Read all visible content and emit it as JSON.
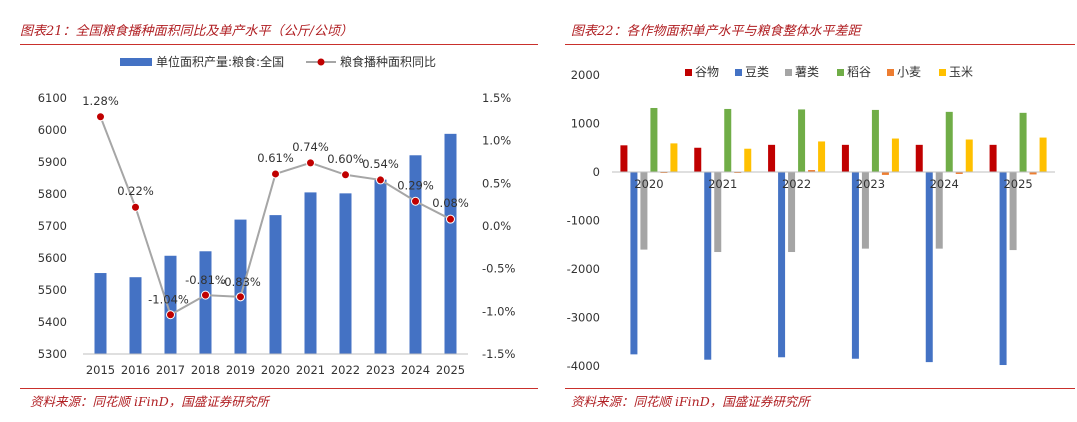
{
  "colors": {
    "title": "#b01e22",
    "rule": "#c9302c",
    "bar_blue": "#4472c4",
    "line_gray": "#a6a6a6",
    "marker_red": "#c00000"
  },
  "left": {
    "title": "图表21：全国粮食播种面积同比及单产水平（公斤/公顷）",
    "source": "资料来源：同花顺 iFinD，国盛证券研究所",
    "chart_data": {
      "type": "bar+line",
      "categories": [
        "2015",
        "2016",
        "2017",
        "2018",
        "2019",
        "2020",
        "2021",
        "2022",
        "2023",
        "2024",
        "2025"
      ],
      "series": [
        {
          "name": "单位面积产量:粮食:全国",
          "type": "bar",
          "axis": "left",
          "values": [
            5553,
            5540,
            5607,
            5621,
            5720,
            5734,
            5805,
            5802,
            5845,
            5921,
            5988
          ]
        },
        {
          "name": "粮食播种面积同比",
          "type": "line",
          "axis": "right",
          "values": [
            1.28,
            0.22,
            -1.04,
            -0.81,
            -0.83,
            0.61,
            0.74,
            0.6,
            0.54,
            0.29,
            0.08
          ],
          "labels": [
            "1.28%",
            "0.22%",
            "-1.04%",
            "-0.81%",
            "-0.83%",
            "0.61%",
            "0.74%",
            "0.60%",
            "0.54%",
            "0.29%",
            "0.08%"
          ]
        }
      ],
      "y_left": {
        "min": 5300,
        "max": 6100,
        "ticks": [
          "5300",
          "5400",
          "5500",
          "5600",
          "5700",
          "5800",
          "5900",
          "6000",
          "6100"
        ]
      },
      "y_right": {
        "min": -1.5,
        "max": 1.5,
        "ticks": [
          "-1.5%",
          "-1.0%",
          "-0.5%",
          "0.0%",
          "0.5%",
          "1.0%",
          "1.5%"
        ]
      },
      "grid": false,
      "legend": "top"
    }
  },
  "right": {
    "title": "图表22：各作物面积单产水平与粮食整体水平差距",
    "source": "资料来源：同花顺 iFinD，国盛证券研究所",
    "chart_data": {
      "type": "bar",
      "categories": [
        "2020",
        "2021",
        "2022",
        "2023",
        "2024",
        "2025"
      ],
      "series": [
        {
          "name": "谷物",
          "color": "#c00000",
          "values": [
            550,
            500,
            560,
            560,
            560,
            560
          ]
        },
        {
          "name": "豆类",
          "color": "#4472c4",
          "values": [
            -3760,
            -3870,
            -3820,
            -3850,
            -3920,
            -3980
          ]
        },
        {
          "name": "薯类",
          "color": "#a5a5a5",
          "values": [
            -1600,
            -1650,
            -1650,
            -1580,
            -1580,
            -1610
          ]
        },
        {
          "name": "稻谷",
          "color": "#70ad47",
          "values": [
            1320,
            1300,
            1290,
            1280,
            1240,
            1220
          ]
        },
        {
          "name": "小麦",
          "color": "#ed7d31",
          "values": [
            -20,
            -20,
            40,
            -60,
            -40,
            -50
          ]
        },
        {
          "name": "玉米",
          "color": "#ffc000",
          "values": [
            590,
            480,
            630,
            690,
            670,
            710
          ]
        }
      ],
      "y": {
        "min": -4000,
        "max": 2000,
        "ticks": [
          "-4000",
          "-3000",
          "-2000",
          "-1000",
          "0",
          "1000",
          "2000"
        ]
      },
      "grid": false,
      "legend": "top"
    }
  }
}
